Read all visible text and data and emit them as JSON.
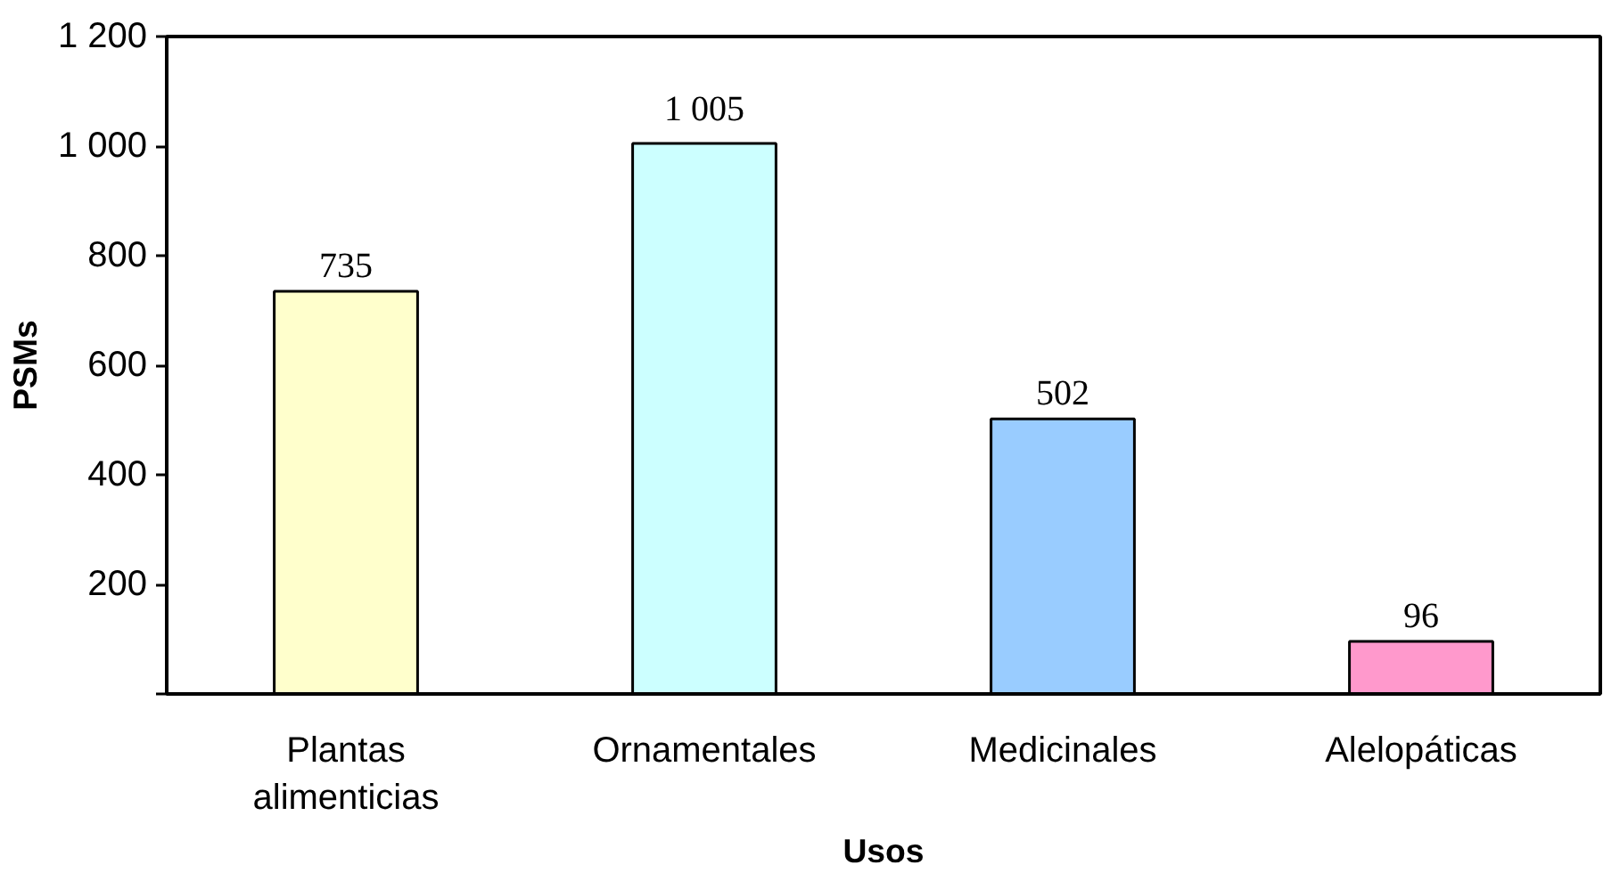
{
  "chart_data": {
    "type": "bar",
    "xlabel": "Usos",
    "ylabel": "PSMs",
    "categories": [
      "Plantas alimenticias",
      "Ornamentales",
      "Medicinales",
      "Alelopáticas"
    ],
    "values": [
      735,
      1005,
      502,
      96
    ],
    "colors": [
      "#ffffcc",
      "#ccffff",
      "#99ccff",
      "#ff99cc"
    ],
    "value_labels": [
      "735",
      "1 005",
      "502",
      "96"
    ],
    "ylim": [
      0,
      1200
    ],
    "yticks": [
      {
        "value": 0,
        "label": null
      },
      200,
      400,
      600,
      800,
      {
        "value": 1000,
        "label": "1 000"
      },
      {
        "value": 1200,
        "label": "1 200"
      }
    ],
    "grid": false
  }
}
